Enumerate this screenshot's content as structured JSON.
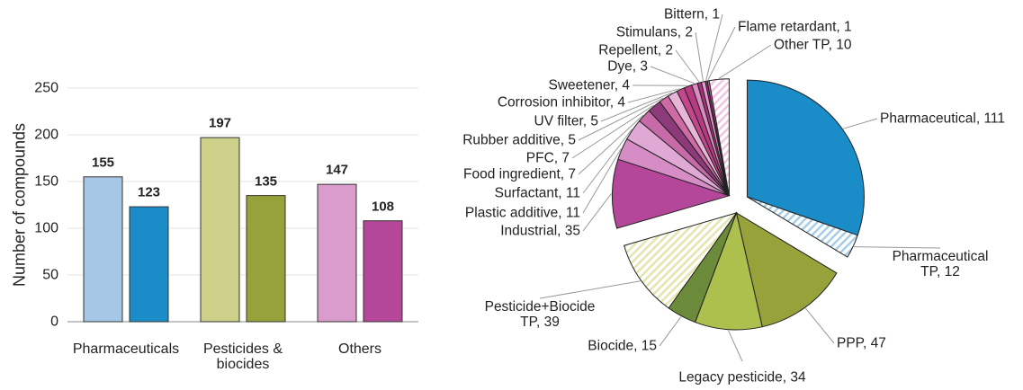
{
  "chart_data": [
    {
      "type": "bar",
      "ylabel": "Number of compounds",
      "categories": [
        "Pharmaceuticals",
        "Pesticides &\nbiocides",
        "Others"
      ],
      "series": [
        {
          "colors": [
            "#a6c8e6",
            "#cdd18a",
            "#d99ccc"
          ],
          "values": [
            155,
            197,
            147
          ]
        },
        {
          "colors": [
            "#1a8cc8",
            "#98a23a",
            "#b5479a"
          ],
          "values": [
            123,
            135,
            108
          ]
        }
      ],
      "ylim": [
        0,
        250
      ],
      "yticks": [
        0,
        50,
        100,
        150,
        200,
        250
      ],
      "grid": true
    },
    {
      "type": "pie",
      "values": [
        111,
        12,
        47,
        34,
        15,
        39,
        35,
        11,
        11,
        7,
        7,
        5,
        5,
        4,
        4,
        3,
        2,
        2,
        1,
        1,
        10
      ],
      "value_labels": [
        "Pharmaceutical, 111",
        "Pharmaceutical\nTP, 12",
        "PPP, 47",
        "Legacy pesticide, 34",
        "Biocide, 15",
        "Pesticide+Biocide\nTP, 39",
        "Industrial, 35",
        "Plastic additive, 11",
        "Surfactant, 11",
        "Food ingredient, 7",
        "PFC, 7",
        "Rubber additive, 5",
        "UV filter, 5",
        "Corrosion inhibitor, 4",
        "Sweetener, 4",
        "Dye, 3",
        "Repellent, 2",
        "Stimulans, 2",
        "Bittern, 1",
        "Flame retardant, 1",
        "Other TP, 10"
      ],
      "colors": [
        "#1a8cc8",
        "#a8cde8",
        "#98a23a",
        "#adbf4c",
        "#6b8a3a",
        "#e4e6b0",
        "#b5479a",
        "#d68cc4",
        "#e0a8d4",
        "#c86aa8",
        "#8c3a7a",
        "#d06aa6",
        "#e8b4d8",
        "#c4468c",
        "#b83a82",
        "#d88cc0",
        "#a83278",
        "#e29ad0",
        "#9a2a70",
        "#c85aa0",
        "#f2c4e4"
      ],
      "hatched": [
        false,
        true,
        false,
        false,
        false,
        true,
        false,
        false,
        false,
        false,
        false,
        false,
        false,
        false,
        false,
        false,
        false,
        false,
        false,
        false,
        true
      ]
    }
  ]
}
